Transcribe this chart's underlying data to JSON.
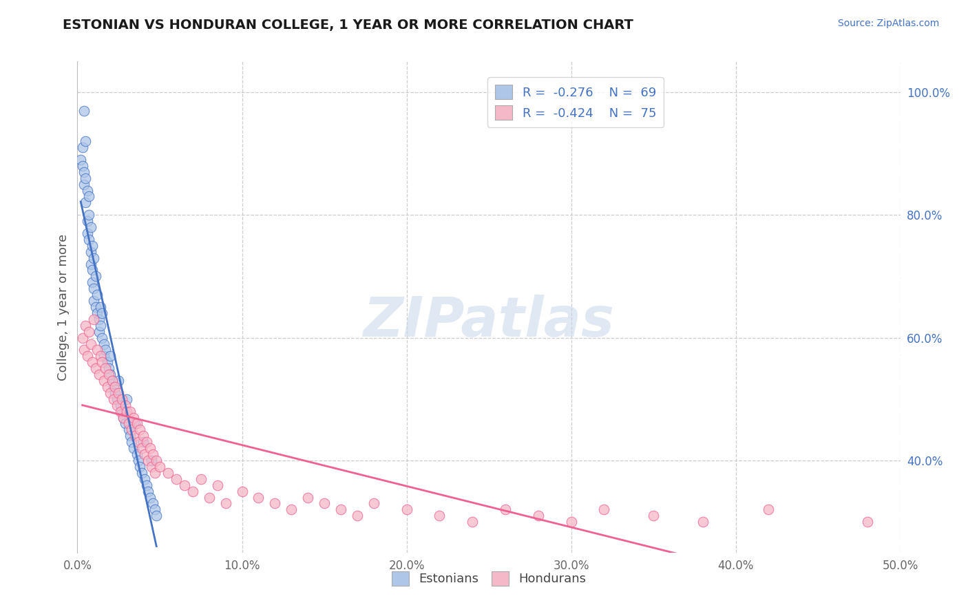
{
  "title": "ESTONIAN VS HONDURAN COLLEGE, 1 YEAR OR MORE CORRELATION CHART",
  "source_text": "Source: ZipAtlas.com",
  "ylabel": "College, 1 year or more",
  "xlim": [
    0.0,
    0.5
  ],
  "ylim": [
    0.25,
    1.05
  ],
  "xtick_labels": [
    "0.0%",
    "10.0%",
    "20.0%",
    "30.0%",
    "40.0%",
    "50.0%"
  ],
  "xtick_vals": [
    0.0,
    0.1,
    0.2,
    0.3,
    0.4,
    0.5
  ],
  "ytick_labels_right": [
    "40.0%",
    "60.0%",
    "80.0%",
    "100.0%"
  ],
  "ytick_vals_right": [
    0.4,
    0.6,
    0.8,
    1.0
  ],
  "watermark": "ZIPatlas",
  "legend_R1": "-0.276",
  "legend_N1": "69",
  "legend_R2": "-0.424",
  "legend_N2": "75",
  "color_estonian": "#aec6e8",
  "color_honduran": "#f5b8c8",
  "color_line_estonian": "#4472c4",
  "color_line_honduran": "#f06090",
  "background_color": "#ffffff",
  "estonian_x": [
    0.004,
    0.002,
    0.003,
    0.003,
    0.004,
    0.004,
    0.005,
    0.005,
    0.005,
    0.006,
    0.006,
    0.006,
    0.007,
    0.007,
    0.007,
    0.008,
    0.008,
    0.008,
    0.009,
    0.009,
    0.009,
    0.01,
    0.01,
    0.01,
    0.011,
    0.011,
    0.012,
    0.012,
    0.013,
    0.013,
    0.014,
    0.014,
    0.015,
    0.015,
    0.016,
    0.016,
    0.017,
    0.018,
    0.019,
    0.02,
    0.02,
    0.021,
    0.022,
    0.023,
    0.024,
    0.025,
    0.026,
    0.027,
    0.028,
    0.029,
    0.03,
    0.031,
    0.032,
    0.033,
    0.034,
    0.035,
    0.036,
    0.037,
    0.038,
    0.039,
    0.04,
    0.041,
    0.042,
    0.043,
    0.044,
    0.045,
    0.046,
    0.047,
    0.048
  ],
  "estonian_y": [
    0.97,
    0.89,
    0.91,
    0.88,
    0.87,
    0.85,
    0.92,
    0.82,
    0.86,
    0.84,
    0.79,
    0.77,
    0.83,
    0.8,
    0.76,
    0.78,
    0.74,
    0.72,
    0.75,
    0.71,
    0.69,
    0.73,
    0.68,
    0.66,
    0.7,
    0.65,
    0.67,
    0.64,
    0.63,
    0.61,
    0.65,
    0.62,
    0.64,
    0.6,
    0.59,
    0.57,
    0.58,
    0.56,
    0.55,
    0.54,
    0.57,
    0.53,
    0.52,
    0.51,
    0.5,
    0.53,
    0.49,
    0.48,
    0.47,
    0.46,
    0.5,
    0.45,
    0.44,
    0.43,
    0.42,
    0.46,
    0.41,
    0.4,
    0.39,
    0.38,
    0.43,
    0.37,
    0.36,
    0.35,
    0.34,
    0.4,
    0.33,
    0.32,
    0.31
  ],
  "honduran_x": [
    0.003,
    0.004,
    0.005,
    0.006,
    0.007,
    0.008,
    0.009,
    0.01,
    0.011,
    0.012,
    0.013,
    0.014,
    0.015,
    0.016,
    0.017,
    0.018,
    0.019,
    0.02,
    0.021,
    0.022,
    0.023,
    0.024,
    0.025,
    0.026,
    0.027,
    0.028,
    0.029,
    0.03,
    0.031,
    0.032,
    0.033,
    0.034,
    0.035,
    0.036,
    0.037,
    0.038,
    0.039,
    0.04,
    0.041,
    0.042,
    0.043,
    0.044,
    0.045,
    0.046,
    0.047,
    0.048,
    0.05,
    0.055,
    0.06,
    0.065,
    0.07,
    0.075,
    0.08,
    0.085,
    0.09,
    0.1,
    0.11,
    0.12,
    0.13,
    0.14,
    0.15,
    0.16,
    0.17,
    0.18,
    0.2,
    0.22,
    0.24,
    0.26,
    0.28,
    0.3,
    0.32,
    0.35,
    0.38,
    0.42,
    0.48
  ],
  "honduran_y": [
    0.6,
    0.58,
    0.62,
    0.57,
    0.61,
    0.59,
    0.56,
    0.63,
    0.55,
    0.58,
    0.54,
    0.57,
    0.56,
    0.53,
    0.55,
    0.52,
    0.54,
    0.51,
    0.53,
    0.5,
    0.52,
    0.49,
    0.51,
    0.48,
    0.5,
    0.47,
    0.49,
    0.48,
    0.46,
    0.48,
    0.45,
    0.47,
    0.44,
    0.46,
    0.43,
    0.45,
    0.42,
    0.44,
    0.41,
    0.43,
    0.4,
    0.42,
    0.39,
    0.41,
    0.38,
    0.4,
    0.39,
    0.38,
    0.37,
    0.36,
    0.35,
    0.37,
    0.34,
    0.36,
    0.33,
    0.35,
    0.34,
    0.33,
    0.32,
    0.34,
    0.33,
    0.32,
    0.31,
    0.33,
    0.32,
    0.31,
    0.3,
    0.32,
    0.31,
    0.3,
    0.32,
    0.31,
    0.3,
    0.32,
    0.3
  ]
}
